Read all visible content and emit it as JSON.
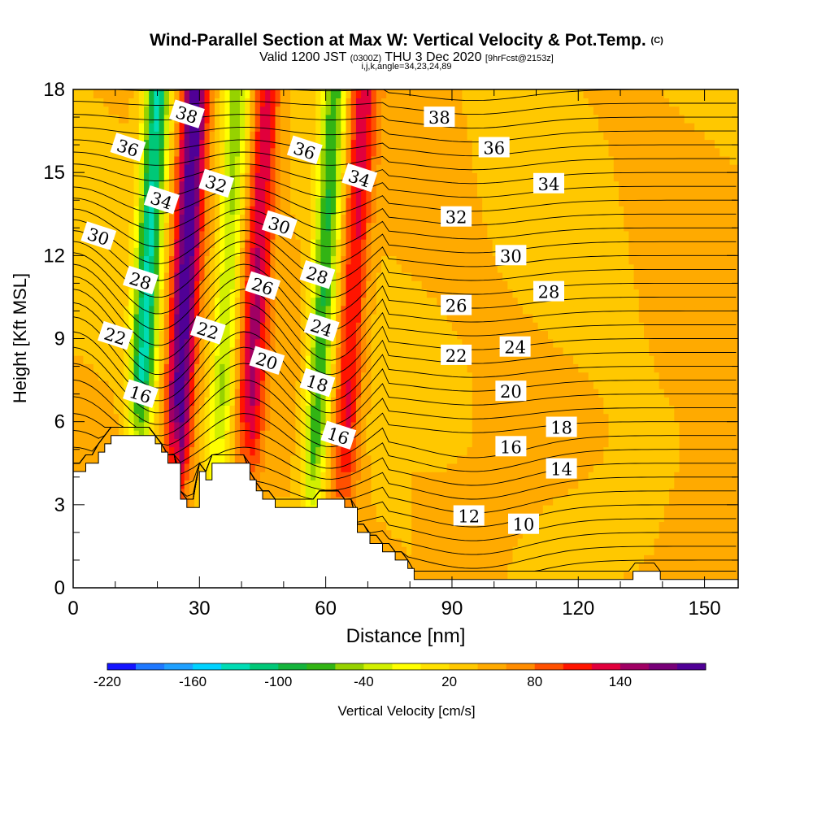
{
  "title": {
    "main": "Wind-Parallel Section at Max W: Vertical Velocity & Pot.Temp.",
    "copyright": "(C)",
    "valid_prefix": "Valid 1200 JST",
    "utc": "(0300Z)",
    "date": "THU 3 Dec 2020",
    "forecast": "[9hrFcst@2153z]",
    "indices": "i,j,k,angle=34,23,24,89"
  },
  "colorbar": {
    "label": "Vertical Velocity [cm/s]",
    "tick_labels": [
      "-220",
      "-160",
      "-100",
      "-40",
      "20",
      "80",
      "140"
    ],
    "colors": [
      "#1414ff",
      "#1e78ff",
      "#1ea0ff",
      "#00d2ff",
      "#00dcb4",
      "#00c878",
      "#14b43c",
      "#32b414",
      "#96d200",
      "#d2f000",
      "#ffff00",
      "#ffe100",
      "#ffc800",
      "#ffaa00",
      "#ff8c00",
      "#ff5000",
      "#ff1400",
      "#e1003c",
      "#a00064",
      "#780078",
      "#500096"
    ]
  },
  "chart_data": {
    "type": "heatmap",
    "xlabel": "Distance [nm]",
    "ylabel": "Height [Kft MSL]",
    "xlim": [
      0,
      158
    ],
    "ylim": [
      0,
      18
    ],
    "x_ticks": [
      "0",
      "30",
      "60",
      "90",
      "120",
      "150"
    ],
    "y_ticks": [
      "0",
      "3",
      "6",
      "9",
      "12",
      "15",
      "18"
    ],
    "shaded_field": "Vertical Velocity [cm/s]",
    "shaded_range": [
      -220,
      170
    ],
    "contour_field": "Potential Temperature",
    "contour_labels": [
      {
        "text": "38",
        "x": 27,
        "y": 17.1
      },
      {
        "text": "36",
        "x": 13,
        "y": 15.9
      },
      {
        "text": "36",
        "x": 55,
        "y": 15.8
      },
      {
        "text": "34",
        "x": 21,
        "y": 14.0
      },
      {
        "text": "34",
        "x": 68,
        "y": 14.8
      },
      {
        "text": "32",
        "x": 34,
        "y": 14.6
      },
      {
        "text": "30",
        "x": 6,
        "y": 12.7
      },
      {
        "text": "30",
        "x": 49,
        "y": 13.1
      },
      {
        "text": "28",
        "x": 16,
        "y": 11.1
      },
      {
        "text": "28",
        "x": 58,
        "y": 11.3
      },
      {
        "text": "26",
        "x": 45,
        "y": 10.9
      },
      {
        "text": "24",
        "x": 59,
        "y": 9.4
      },
      {
        "text": "22",
        "x": 10,
        "y": 9.1
      },
      {
        "text": "22",
        "x": 32,
        "y": 9.3
      },
      {
        "text": "20",
        "x": 46,
        "y": 8.2
      },
      {
        "text": "18",
        "x": 58,
        "y": 7.4
      },
      {
        "text": "16",
        "x": 16,
        "y": 7.0
      },
      {
        "text": "16",
        "x": 63,
        "y": 5.5
      },
      {
        "text": "38",
        "x": 87,
        "y": 17.0
      },
      {
        "text": "36",
        "x": 100,
        "y": 15.9
      },
      {
        "text": "34",
        "x": 113,
        "y": 14.6
      },
      {
        "text": "32",
        "x": 91,
        "y": 13.4
      },
      {
        "text": "30",
        "x": 104,
        "y": 12.0
      },
      {
        "text": "28",
        "x": 113,
        "y": 10.7
      },
      {
        "text": "26",
        "x": 91,
        "y": 10.2
      },
      {
        "text": "24",
        "x": 105,
        "y": 8.7
      },
      {
        "text": "22",
        "x": 91,
        "y": 8.4
      },
      {
        "text": "20",
        "x": 104,
        "y": 7.1
      },
      {
        "text": "18",
        "x": 116,
        "y": 5.8
      },
      {
        "text": "16",
        "x": 104,
        "y": 5.1
      },
      {
        "text": "14",
        "x": 116,
        "y": 4.3
      },
      {
        "text": "12",
        "x": 94,
        "y": 2.6
      },
      {
        "text": "10",
        "x": 107,
        "y": 2.3
      }
    ],
    "updraft_bands": [
      {
        "x": 27,
        "peak": 165
      },
      {
        "x": 44,
        "peak": 110
      },
      {
        "x": 67,
        "peak": 100
      }
    ],
    "downdraft_bands": [
      {
        "x": 18,
        "peak": -130
      },
      {
        "x": 37,
        "peak": -60
      },
      {
        "x": 60,
        "peak": -90
      }
    ],
    "terrain_steps": [
      [
        0,
        4.2
      ],
      [
        3,
        4.2
      ],
      [
        3,
        4.5
      ],
      [
        6,
        4.5
      ],
      [
        6,
        4.9
      ],
      [
        7.5,
        4.9
      ],
      [
        7.5,
        5.2
      ],
      [
        9,
        5.2
      ],
      [
        9,
        5.5
      ],
      [
        19.5,
        5.5
      ],
      [
        19.5,
        5.2
      ],
      [
        21,
        5.2
      ],
      [
        21,
        4.9
      ],
      [
        22.5,
        4.9
      ],
      [
        22.5,
        4.5
      ],
      [
        25.5,
        4.5
      ],
      [
        25.5,
        3.2
      ],
      [
        27,
        3.2
      ],
      [
        27,
        2.9
      ],
      [
        30,
        2.9
      ],
      [
        30,
        4.2
      ],
      [
        31.5,
        4.2
      ],
      [
        31.5,
        3.9
      ],
      [
        33,
        3.9
      ],
      [
        33,
        4.5
      ],
      [
        42,
        4.5
      ],
      [
        42,
        3.9
      ],
      [
        43.5,
        3.9
      ],
      [
        43.5,
        3.5
      ],
      [
        45,
        3.5
      ],
      [
        45,
        3.2
      ],
      [
        48,
        3.2
      ],
      [
        48,
        2.9
      ],
      [
        58,
        2.9
      ],
      [
        58,
        3.2
      ],
      [
        64.5,
        3.2
      ],
      [
        64.5,
        2.9
      ],
      [
        67.5,
        2.9
      ],
      [
        67.5,
        2.0
      ],
      [
        70.5,
        2.0
      ],
      [
        70.5,
        1.6
      ],
      [
        73.5,
        1.6
      ],
      [
        73.5,
        1.3
      ],
      [
        76.5,
        1.3
      ],
      [
        76.5,
        1.0
      ],
      [
        79.5,
        1.0
      ],
      [
        79.5,
        0.7
      ],
      [
        81,
        0.7
      ],
      [
        81,
        0.3
      ],
      [
        133,
        0.3
      ],
      [
        133,
        0.6
      ],
      [
        139.5,
        0.6
      ],
      [
        139.5,
        0.3
      ],
      [
        158,
        0.3
      ],
      [
        158,
        0
      ]
    ]
  }
}
